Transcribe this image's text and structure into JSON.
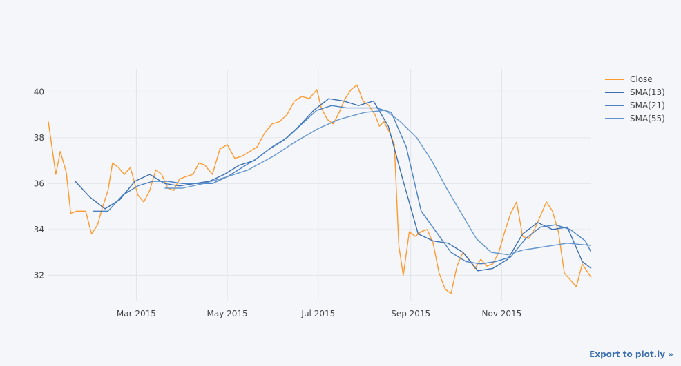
{
  "export_label": "Export to plot.ly »",
  "chart_data": {
    "type": "line",
    "title": "",
    "xlabel": "",
    "ylabel": "",
    "x_range": [
      "2015-01-01",
      "2015-12-31"
    ],
    "ylim": [
      30.9,
      41.0
    ],
    "x_ticks": [
      {
        "date": "2015-03-01",
        "label": "Mar 2015"
      },
      {
        "date": "2015-05-01",
        "label": "May 2015"
      },
      {
        "date": "2015-07-01",
        "label": "Jul 2015"
      },
      {
        "date": "2015-09-01",
        "label": "Sep 2015"
      },
      {
        "date": "2015-11-01",
        "label": "Nov 2015"
      }
    ],
    "y_ticks": [
      32,
      34,
      36,
      38,
      40
    ],
    "grid": true,
    "legend_position": "top-right",
    "series": [
      {
        "name": "Close",
        "color": "#ff9a2e",
        "x": [
          "2015-01-01",
          "2015-01-06",
          "2015-01-09",
          "2015-01-13",
          "2015-01-16",
          "2015-01-20",
          "2015-01-26",
          "2015-01-30",
          "2015-02-03",
          "2015-02-06",
          "2015-02-10",
          "2015-02-13",
          "2015-02-17",
          "2015-02-21",
          "2015-02-25",
          "2015-03-02",
          "2015-03-06",
          "2015-03-10",
          "2015-03-14",
          "2015-03-18",
          "2015-03-22",
          "2015-03-26",
          "2015-03-30",
          "2015-04-03",
          "2015-04-08",
          "2015-04-12",
          "2015-04-16",
          "2015-04-21",
          "2015-04-26",
          "2015-05-01",
          "2015-05-06",
          "2015-05-11",
          "2015-05-16",
          "2015-05-21",
          "2015-05-26",
          "2015-05-31",
          "2015-06-05",
          "2015-06-10",
          "2015-06-15",
          "2015-06-20",
          "2015-06-25",
          "2015-06-30",
          "2015-07-03",
          "2015-07-07",
          "2015-07-11",
          "2015-07-15",
          "2015-07-19",
          "2015-07-23",
          "2015-07-27",
          "2015-07-31",
          "2015-08-04",
          "2015-08-08",
          "2015-08-11",
          "2015-08-14",
          "2015-08-18",
          "2015-08-21",
          "2015-08-24",
          "2015-08-27",
          "2015-08-31",
          "2015-09-04",
          "2015-09-08",
          "2015-09-12",
          "2015-09-16",
          "2015-09-20",
          "2015-09-24",
          "2015-09-28",
          "2015-10-02",
          "2015-10-06",
          "2015-10-10",
          "2015-10-14",
          "2015-10-18",
          "2015-10-22",
          "2015-10-26",
          "2015-10-30",
          "2015-11-03",
          "2015-11-07",
          "2015-11-11",
          "2015-11-15",
          "2015-11-19",
          "2015-11-23",
          "2015-11-27",
          "2015-12-01",
          "2015-12-05",
          "2015-12-09",
          "2015-12-13",
          "2015-12-17",
          "2015-12-21",
          "2015-12-25",
          "2015-12-31"
        ],
        "values": [
          38.7,
          36.4,
          37.4,
          36.5,
          34.7,
          34.8,
          34.8,
          33.8,
          34.2,
          34.9,
          35.7,
          36.9,
          36.7,
          36.4,
          36.7,
          35.5,
          35.2,
          35.7,
          36.6,
          36.4,
          35.8,
          35.7,
          36.2,
          36.3,
          36.4,
          36.9,
          36.8,
          36.4,
          37.5,
          37.7,
          37.1,
          37.2,
          37.4,
          37.6,
          38.2,
          38.6,
          38.7,
          39.0,
          39.6,
          39.8,
          39.7,
          40.1,
          39.3,
          38.8,
          38.6,
          39.1,
          39.7,
          40.1,
          40.3,
          39.6,
          39.4,
          39.0,
          38.5,
          38.7,
          38.2,
          37.7,
          33.3,
          32.0,
          33.9,
          33.7,
          33.9,
          34.0,
          33.4,
          32.1,
          31.4,
          31.2,
          32.4,
          33.0,
          32.7,
          32.3,
          32.7,
          32.4,
          32.5,
          33.0,
          33.9,
          34.7,
          35.2,
          33.7,
          33.6,
          34.0,
          34.6,
          35.2,
          34.8,
          33.9,
          32.1,
          31.8,
          31.5,
          32.5,
          31.9
        ]
      },
      {
        "name": "SMA(13)",
        "color": "#3a6fb0",
        "x": [
          "2015-01-19",
          "2015-01-29",
          "2015-02-08",
          "2015-02-18",
          "2015-02-28",
          "2015-03-10",
          "2015-03-20",
          "2015-03-30",
          "2015-04-09",
          "2015-04-19",
          "2015-04-29",
          "2015-05-09",
          "2015-05-19",
          "2015-05-29",
          "2015-06-08",
          "2015-06-18",
          "2015-06-28",
          "2015-07-08",
          "2015-07-18",
          "2015-07-28",
          "2015-08-07",
          "2015-08-17",
          "2015-08-27",
          "2015-09-06",
          "2015-09-16",
          "2015-09-26",
          "2015-10-06",
          "2015-10-16",
          "2015-10-26",
          "2015-11-05",
          "2015-11-15",
          "2015-11-25",
          "2015-12-05",
          "2015-12-15",
          "2015-12-25",
          "2015-12-31"
        ],
        "values": [
          36.1,
          35.4,
          34.9,
          35.3,
          36.1,
          36.4,
          36.0,
          35.9,
          36.0,
          36.1,
          36.4,
          36.8,
          37.0,
          37.5,
          37.9,
          38.5,
          39.2,
          39.7,
          39.6,
          39.4,
          39.6,
          38.5,
          36.1,
          33.8,
          33.5,
          33.4,
          33.0,
          32.2,
          32.3,
          32.7,
          33.8,
          34.3,
          34.0,
          34.1,
          32.6,
          32.3
        ]
      },
      {
        "name": "SMA(21)",
        "color": "#4a82c4",
        "x": [
          "2015-01-31",
          "2015-02-10",
          "2015-02-20",
          "2015-03-02",
          "2015-03-12",
          "2015-03-22",
          "2015-04-01",
          "2015-04-11",
          "2015-04-21",
          "2015-05-01",
          "2015-05-11",
          "2015-05-21",
          "2015-05-31",
          "2015-06-10",
          "2015-06-20",
          "2015-06-30",
          "2015-07-10",
          "2015-07-20",
          "2015-07-30",
          "2015-08-09",
          "2015-08-19",
          "2015-08-29",
          "2015-09-08",
          "2015-09-18",
          "2015-09-28",
          "2015-10-08",
          "2015-10-18",
          "2015-10-28",
          "2015-11-07",
          "2015-11-17",
          "2015-11-27",
          "2015-12-07",
          "2015-12-17",
          "2015-12-27",
          "2015-12-31"
        ],
        "values": [
          34.8,
          34.8,
          35.5,
          35.9,
          36.1,
          36.1,
          36.0,
          36.0,
          36.0,
          36.3,
          36.7,
          37.1,
          37.6,
          38.0,
          38.6,
          39.2,
          39.4,
          39.3,
          39.3,
          39.3,
          39.1,
          37.6,
          34.8,
          33.9,
          33.0,
          32.6,
          32.5,
          32.6,
          32.8,
          33.6,
          34.1,
          34.2,
          34.0,
          33.5,
          33.0
        ]
      },
      {
        "name": "SMA(55)",
        "color": "#6497cf",
        "x": [
          "2015-03-20",
          "2015-04-01",
          "2015-04-15",
          "2015-05-01",
          "2015-05-15",
          "2015-06-01",
          "2015-06-15",
          "2015-07-01",
          "2015-07-15",
          "2015-08-01",
          "2015-08-15",
          "2015-08-25",
          "2015-09-05",
          "2015-09-15",
          "2015-09-25",
          "2015-10-05",
          "2015-10-15",
          "2015-10-25",
          "2015-11-05",
          "2015-11-15",
          "2015-11-25",
          "2015-12-05",
          "2015-12-15",
          "2015-12-31"
        ],
        "values": [
          35.8,
          35.8,
          36.0,
          36.3,
          36.6,
          37.2,
          37.8,
          38.4,
          38.8,
          39.1,
          39.2,
          38.7,
          38.0,
          37.0,
          35.8,
          34.7,
          33.6,
          33.0,
          32.9,
          33.1,
          33.2,
          33.3,
          33.4,
          33.3
        ]
      }
    ]
  }
}
